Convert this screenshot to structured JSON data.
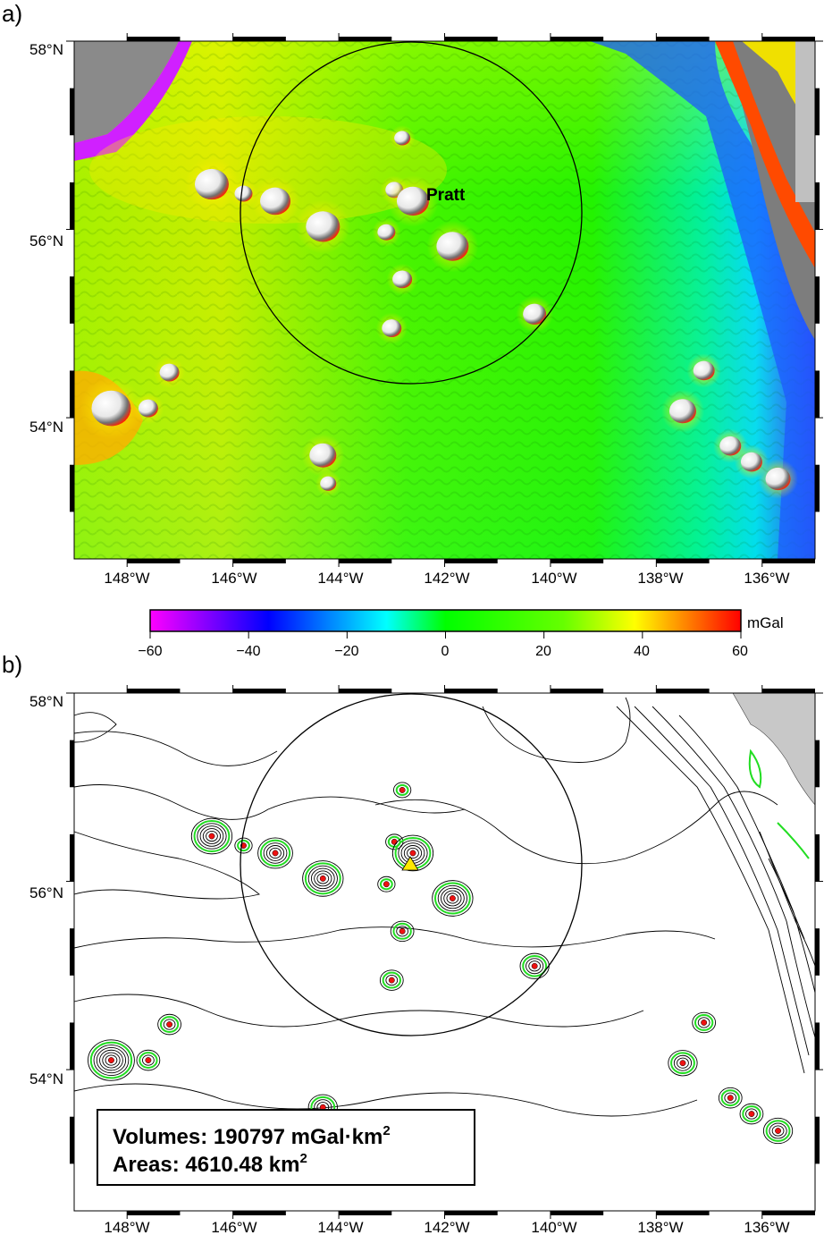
{
  "panel_a": {
    "label": "a)",
    "lat_labels": [
      "58°N",
      "56°N",
      "54°N"
    ],
    "lon_labels": [
      "148°W",
      "146°W",
      "144°W",
      "142°W",
      "140°W",
      "138°W",
      "136°W"
    ],
    "feature_label": "Pratt"
  },
  "colorbar": {
    "unit": "mGal",
    "tick_labels": [
      "−60",
      "−40",
      "−20",
      "0",
      "20",
      "40",
      "60"
    ],
    "range": [
      -60,
      60
    ],
    "colors": [
      "#ff00ff",
      "#0000ff",
      "#00ffff",
      "#00ff00",
      "#ffff00",
      "#ff0000"
    ]
  },
  "panel_b": {
    "label": "b)",
    "lat_labels": [
      "58°N",
      "56°N",
      "54°N"
    ],
    "lon_labels": [
      "148°W",
      "146°W",
      "144°W",
      "142°W",
      "140°W",
      "138°W",
      "136°W"
    ],
    "volume_prefix": "Volumes: 190797 mGal·km",
    "volume_exp": "2",
    "area_prefix": "Areas: 4610.48 km",
    "area_exp": "2"
  },
  "map_data": {
    "lon_range": [
      -149,
      -135
    ],
    "lat_range": [
      52.5,
      58
    ],
    "lon_ticks": [
      -148,
      -146,
      -144,
      -142,
      -140,
      -138,
      -136
    ],
    "lat_ticks": [
      58,
      56,
      54
    ],
    "circle_center": [
      -142.6,
      56.3
    ],
    "seamounts": [
      {
        "lon": -146.4,
        "lat": 56.48,
        "r": 1.5
      },
      {
        "lon": -145.8,
        "lat": 56.38,
        "r": 0.6
      },
      {
        "lon": -145.2,
        "lat": 56.3,
        "r": 1.3
      },
      {
        "lon": -144.3,
        "lat": 56.03,
        "r": 1.5
      },
      {
        "lon": -143.1,
        "lat": 55.97,
        "r": 0.6
      },
      {
        "lon": -142.8,
        "lat": 56.97,
        "r": 0.5
      },
      {
        "lon": -142.95,
        "lat": 56.42,
        "r": 0.6
      },
      {
        "lon": -142.6,
        "lat": 56.3,
        "r": 1.4
      },
      {
        "lon": -141.85,
        "lat": 55.82,
        "r": 1.4
      },
      {
        "lon": -142.8,
        "lat": 55.47,
        "r": 0.7
      },
      {
        "lon": -143.0,
        "lat": 54.95,
        "r": 0.7
      },
      {
        "lon": -140.3,
        "lat": 55.1,
        "r": 0.9
      },
      {
        "lon": -147.2,
        "lat": 54.48,
        "r": 0.7
      },
      {
        "lon": -148.3,
        "lat": 54.1,
        "r": 1.8
      },
      {
        "lon": -147.6,
        "lat": 54.1,
        "r": 0.7
      },
      {
        "lon": -144.3,
        "lat": 53.6,
        "r": 1.1
      },
      {
        "lon": -144.2,
        "lat": 53.3,
        "r": 0.5
      },
      {
        "lon": -137.5,
        "lat": 54.07,
        "r": 1.1
      },
      {
        "lon": -137.1,
        "lat": 54.5,
        "r": 0.8
      },
      {
        "lon": -136.6,
        "lat": 53.7,
        "r": 0.8
      },
      {
        "lon": -136.2,
        "lat": 53.53,
        "r": 0.8
      },
      {
        "lon": -135.7,
        "lat": 53.35,
        "r": 1.0
      }
    ]
  }
}
